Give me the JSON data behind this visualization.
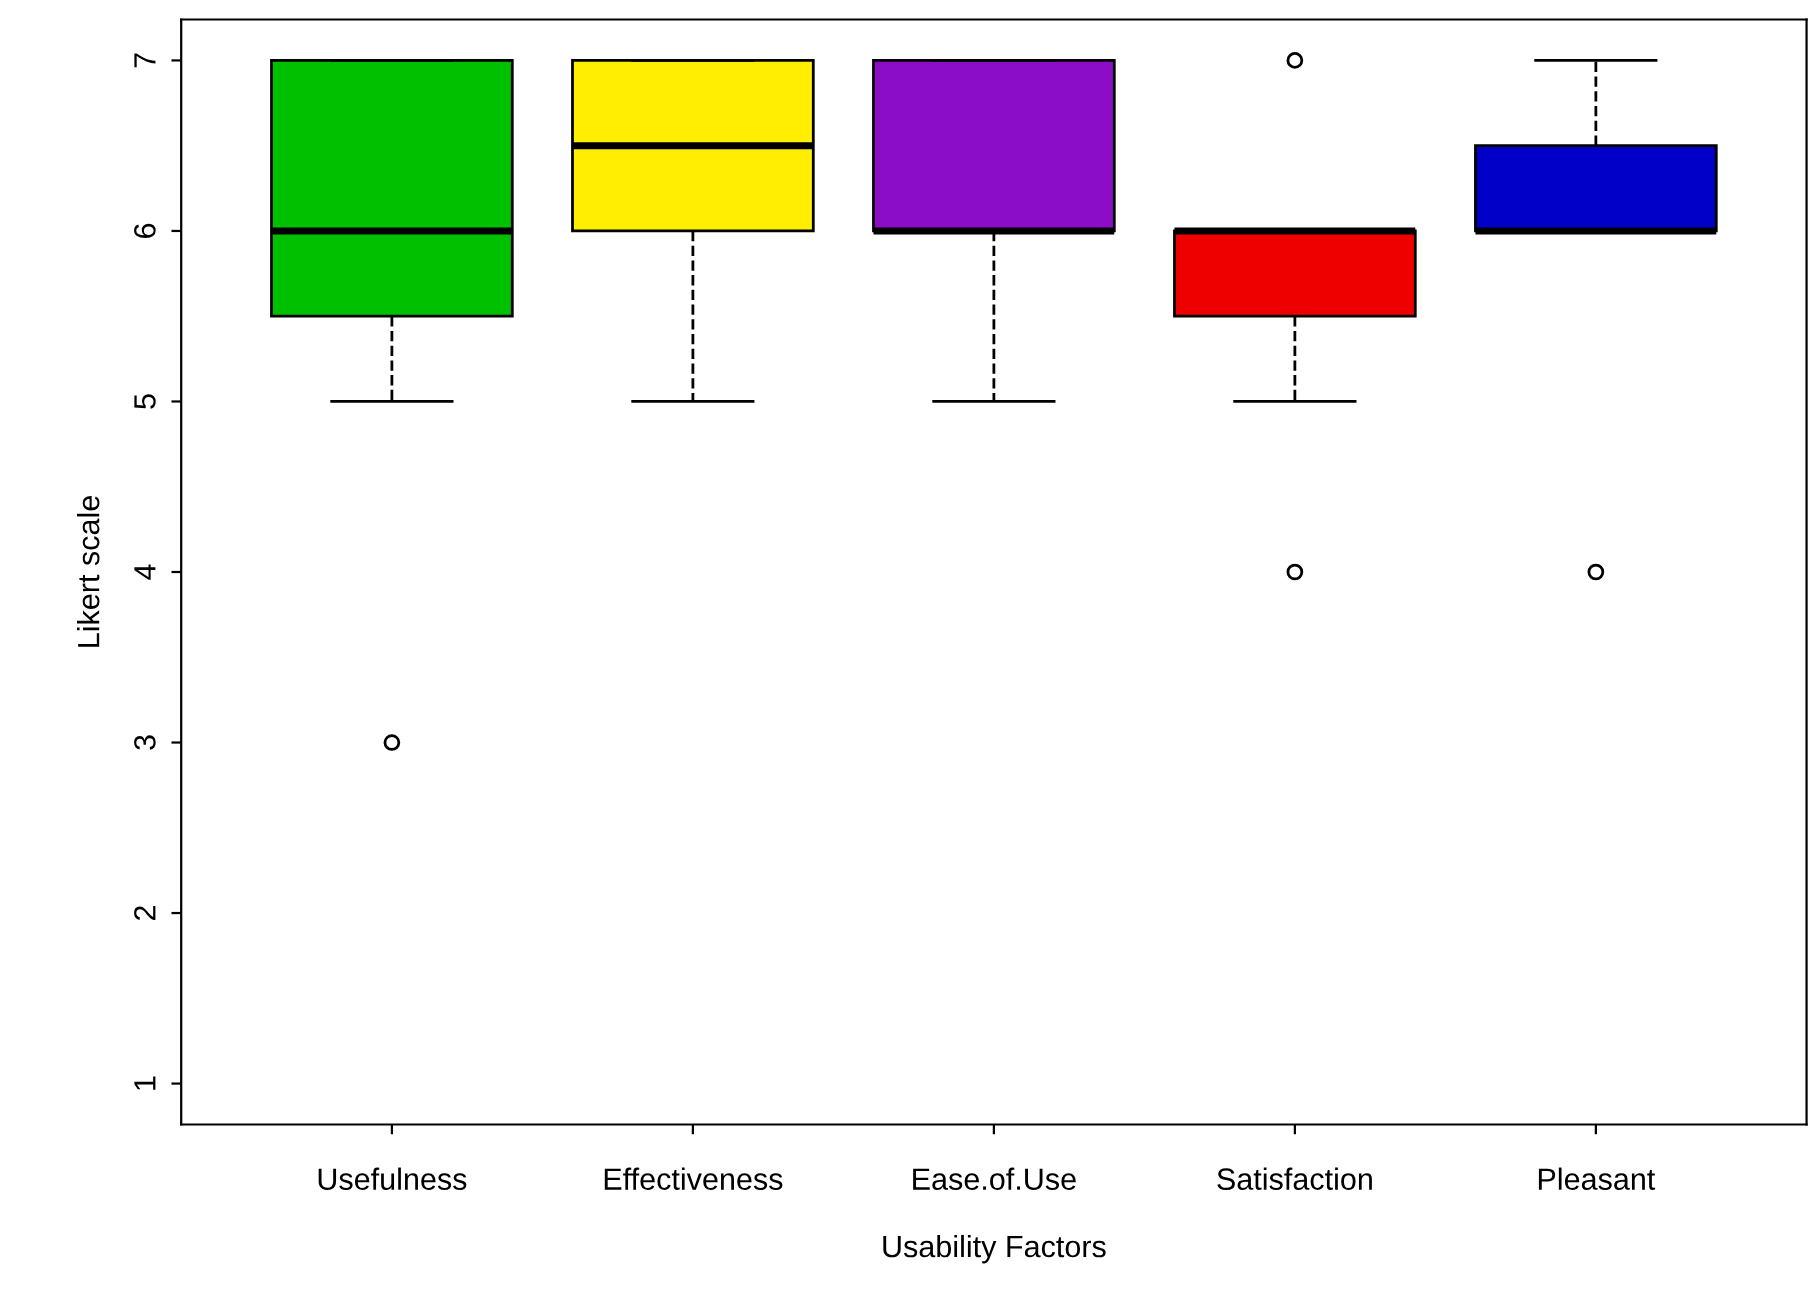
{
  "chart_data": {
    "type": "box",
    "xlabel": "Usability Factors",
    "ylabel": "Likert scale",
    "categories": [
      "Usefulness",
      "Effectiveness",
      "Ease.of.Use",
      "Satisfaction",
      "Pleasant"
    ],
    "colors": [
      "#00c000",
      "#ffee00",
      "#8b0dc8",
      "#ee0000",
      "#0000c8"
    ],
    "boxes": [
      {
        "low": 5,
        "q1": 5.5,
        "median": 6,
        "q3": 7,
        "high": 7,
        "outliers": [
          3
        ]
      },
      {
        "low": 5,
        "q1": 6,
        "median": 6.5,
        "q3": 7,
        "high": 7
      },
      {
        "low": 5,
        "q1": 6,
        "median": 6,
        "q3": 7,
        "high": 7
      },
      {
        "low": 5,
        "q1": 5.5,
        "median": 6,
        "q3": 6,
        "high": 6,
        "outliers": [
          4,
          7
        ]
      },
      {
        "low": 6,
        "q1": 6,
        "median": 6,
        "q3": 6.5,
        "high": 7,
        "outliers": [
          4
        ]
      }
    ],
    "ylim": [
      0.76,
      7.24
    ],
    "yticks": [
      1,
      2,
      3,
      4,
      5,
      6,
      7
    ],
    "grid": false
  }
}
